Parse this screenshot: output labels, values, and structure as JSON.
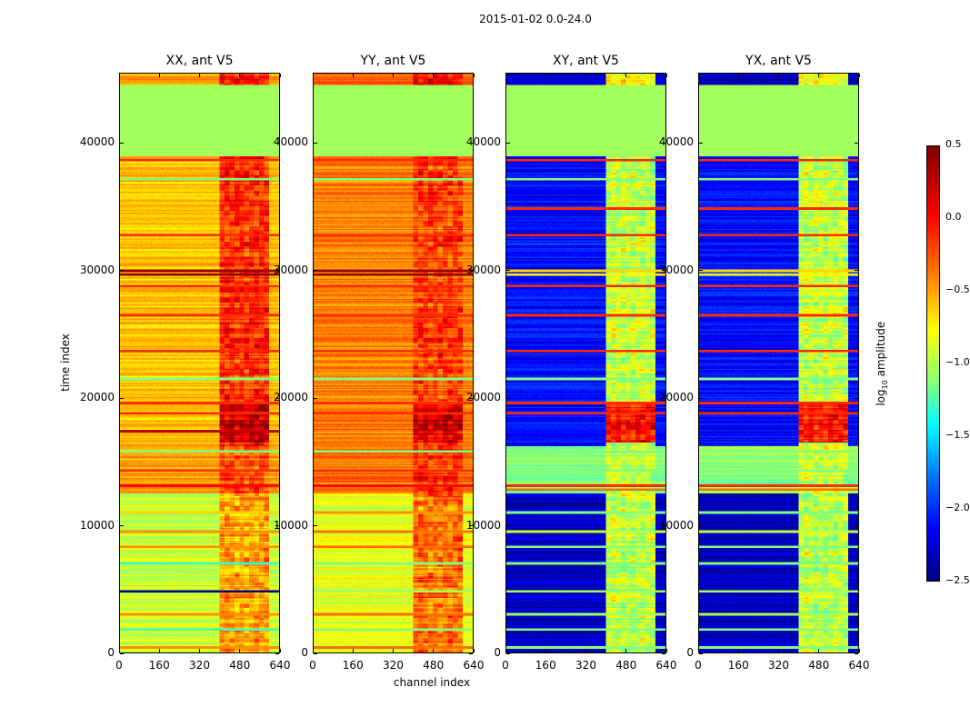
{
  "chart_data": {
    "type": "heatmap",
    "title": "2015-01-02 0.0-24.0",
    "xlabel": "channel index",
    "ylabel": "time index",
    "xlim": [
      0,
      640
    ],
    "ylim": [
      0,
      45500
    ],
    "xticks": [
      "0",
      "160",
      "320",
      "480",
      "640"
    ],
    "yticks": [
      "0",
      "10000",
      "20000",
      "30000",
      "40000"
    ],
    "colormap": "jet",
    "colorbar": {
      "label": "log10 amplitude",
      "label_base": "log",
      "label_sub": "10",
      "label_rest": " amplitude",
      "range": [
        -2.5,
        0.5
      ],
      "ticks": [
        "0.5",
        "0.0",
        "−0.5",
        "−1.0",
        "−1.5",
        "−2.0",
        "−2.5"
      ]
    },
    "panels": [
      {
        "title": "XX, ant V5",
        "hot_channels": [
          400,
          600
        ],
        "regions": [
          [
            0,
            12500,
            -0.8,
            -0.35
          ],
          [
            12500,
            16200,
            -0.35,
            -0.1
          ],
          [
            16200,
            39000,
            -0.45,
            0.0
          ],
          [
            16500,
            19500,
            -0.45,
            0.3
          ],
          [
            39000,
            44600,
            -0.9,
            -0.9
          ],
          [
            44600,
            45500,
            -0.35,
            0.1
          ]
        ],
        "lines": [
          [
            38700,
            0.0
          ],
          [
            37200,
            -1.0
          ],
          [
            32800,
            0.0
          ],
          [
            30000,
            0.4
          ],
          [
            29700,
            0.45
          ],
          [
            28800,
            0.0
          ],
          [
            26500,
            0.0
          ],
          [
            23700,
            0.0
          ],
          [
            21500,
            -1.0
          ],
          [
            19600,
            0.0
          ],
          [
            18800,
            0.0
          ],
          [
            17400,
            0.3
          ],
          [
            15800,
            -1.0
          ],
          [
            14300,
            0.0
          ],
          [
            13100,
            0.1
          ],
          [
            11000,
            -0.5
          ],
          [
            9500,
            -0.3
          ],
          [
            8300,
            -0.3
          ],
          [
            7000,
            -1.2
          ],
          [
            4800,
            -2.5
          ],
          [
            3000,
            -0.3
          ],
          [
            1800,
            -1.2
          ],
          [
            400,
            -0.3
          ]
        ]
      },
      {
        "title": "YY, ant V5",
        "hot_channels": [
          400,
          600
        ],
        "regions": [
          [
            0,
            12500,
            -0.7,
            -0.2
          ],
          [
            12500,
            16200,
            -0.2,
            0.0
          ],
          [
            16200,
            39000,
            -0.25,
            -0.05
          ],
          [
            16500,
            19500,
            -0.25,
            0.25
          ],
          [
            39000,
            44600,
            -0.9,
            -0.9
          ],
          [
            44600,
            45500,
            -0.2,
            0.1
          ]
        ],
        "lines": [
          [
            38700,
            0.0
          ],
          [
            37200,
            -1.0
          ],
          [
            32800,
            0.0
          ],
          [
            30000,
            0.4
          ],
          [
            29700,
            0.45
          ],
          [
            28800,
            0.0
          ],
          [
            26500,
            0.0
          ],
          [
            23700,
            0.0
          ],
          [
            21500,
            -1.0
          ],
          [
            19600,
            0.0
          ],
          [
            18800,
            0.0
          ],
          [
            15800,
            -1.0
          ],
          [
            14300,
            0.0
          ],
          [
            13100,
            0.1
          ],
          [
            11000,
            -0.3
          ],
          [
            9500,
            -0.2
          ],
          [
            8300,
            -0.2
          ],
          [
            7000,
            -1.0
          ],
          [
            4800,
            -0.9
          ],
          [
            3000,
            -0.2
          ],
          [
            1800,
            -1.0
          ],
          [
            400,
            -0.2
          ]
        ]
      },
      {
        "title": "XY, ant V5",
        "hot_channels": [
          400,
          600
        ],
        "regions": [
          [
            0,
            12500,
            -2.3,
            -0.8
          ],
          [
            12500,
            16200,
            -1.0,
            -0.8
          ],
          [
            16200,
            39000,
            -2.1,
            -0.8
          ],
          [
            16500,
            19500,
            -2.1,
            0.1
          ],
          [
            39000,
            44600,
            -0.9,
            -0.9
          ],
          [
            44600,
            45500,
            -2.3,
            -0.6
          ]
        ],
        "lines": [
          [
            38700,
            0.0
          ],
          [
            37200,
            -1.0
          ],
          [
            34900,
            0.0
          ],
          [
            32800,
            0.0
          ],
          [
            30000,
            -0.5
          ],
          [
            29700,
            -0.6
          ],
          [
            28800,
            0.0
          ],
          [
            26500,
            0.0
          ],
          [
            23700,
            0.0
          ],
          [
            21500,
            -1.0
          ],
          [
            19600,
            0.0
          ],
          [
            18800,
            0.0
          ],
          [
            15800,
            -1.0
          ],
          [
            14300,
            -1.0
          ],
          [
            13100,
            0.0
          ],
          [
            12800,
            -0.2
          ],
          [
            11000,
            -1.0
          ],
          [
            9500,
            -0.8
          ],
          [
            8300,
            -1.0
          ],
          [
            7000,
            -1.0
          ],
          [
            4800,
            -0.9
          ],
          [
            3000,
            -0.9
          ],
          [
            1800,
            -1.0
          ],
          [
            400,
            -1.0
          ]
        ]
      },
      {
        "title": "YX, ant V5",
        "hot_channels": [
          400,
          600
        ],
        "regions": [
          [
            0,
            12500,
            -2.3,
            -0.8
          ],
          [
            12500,
            16200,
            -1.0,
            -0.8
          ],
          [
            16200,
            39000,
            -2.1,
            -0.8
          ],
          [
            16500,
            19500,
            -2.1,
            0.1
          ],
          [
            39000,
            44600,
            -0.9,
            -0.9
          ],
          [
            44600,
            45500,
            -2.3,
            -0.6
          ]
        ],
        "lines": [
          [
            38700,
            0.0
          ],
          [
            37200,
            -1.0
          ],
          [
            34900,
            0.0
          ],
          [
            32800,
            0.0
          ],
          [
            30000,
            -0.5
          ],
          [
            29700,
            -0.6
          ],
          [
            28800,
            0.0
          ],
          [
            26500,
            0.0
          ],
          [
            23700,
            0.0
          ],
          [
            21500,
            -1.0
          ],
          [
            19600,
            0.0
          ],
          [
            18800,
            0.0
          ],
          [
            15800,
            -1.0
          ],
          [
            14300,
            -1.0
          ],
          [
            13100,
            0.0
          ],
          [
            12800,
            -0.2
          ],
          [
            11000,
            -1.0
          ],
          [
            9500,
            -0.8
          ],
          [
            8300,
            -1.0
          ],
          [
            7000,
            -1.0
          ],
          [
            4800,
            -0.9
          ],
          [
            3000,
            -0.9
          ],
          [
            1800,
            -1.0
          ],
          [
            400,
            -1.0
          ]
        ]
      }
    ]
  }
}
